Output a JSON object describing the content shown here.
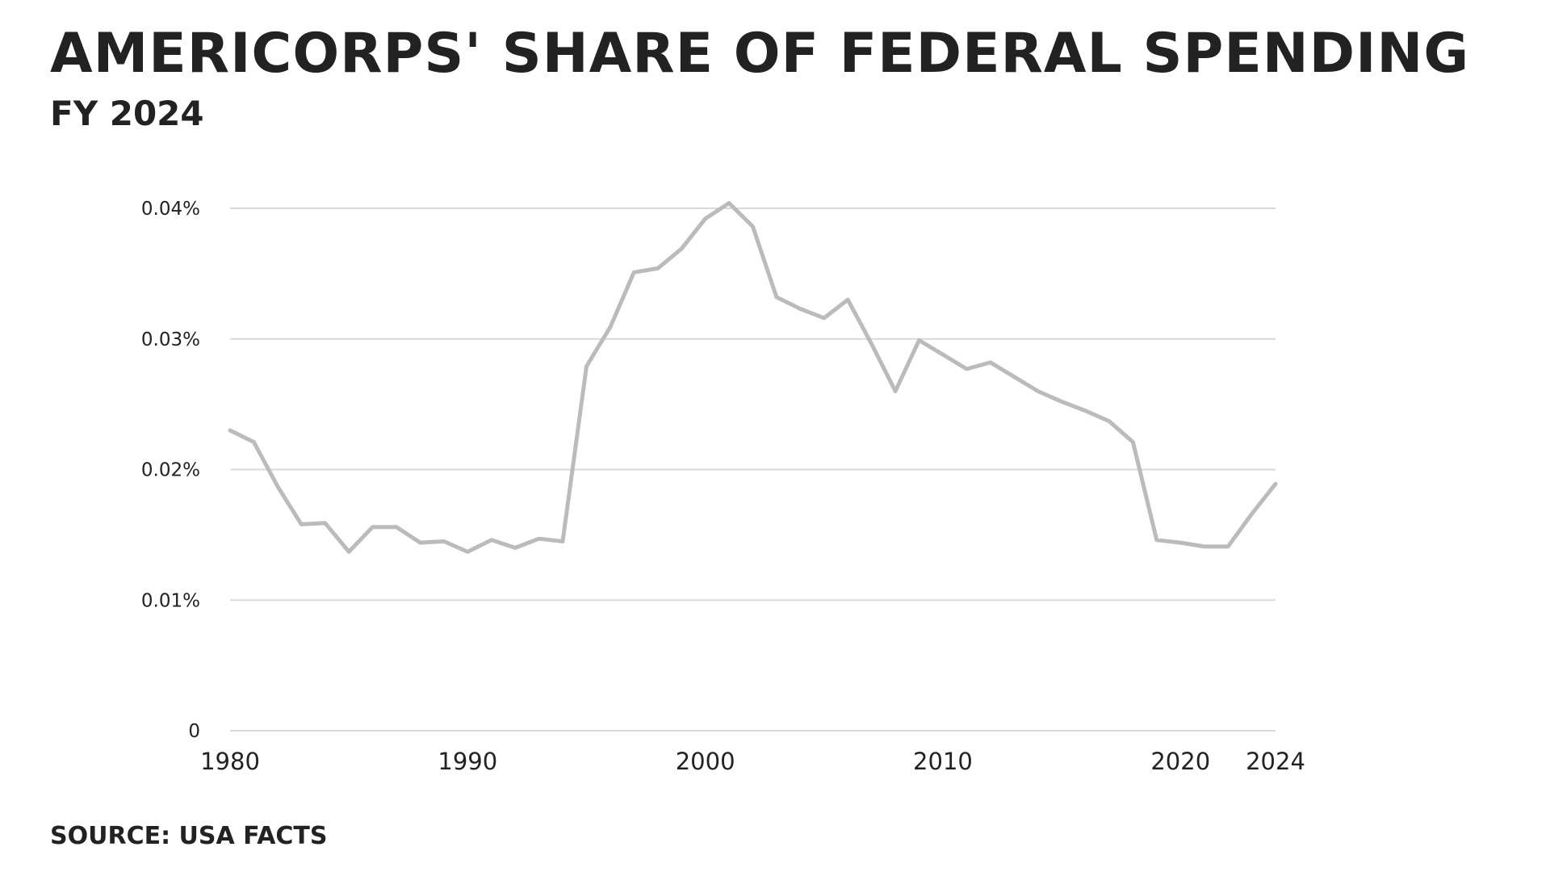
{
  "chart_data": {
    "type": "line",
    "title": "AmeriCorps' share of federal spending",
    "subtitle": "FY 2024",
    "source": "Source: USA Facts",
    "xlabel": "",
    "ylabel": "",
    "xlim": [
      1980,
      2024
    ],
    "ylim": [
      0,
      0.04
    ],
    "grid": true,
    "x_ticks": [
      1980,
      1990,
      2000,
      2010,
      2020,
      2024
    ],
    "x_tick_labels": [
      "1980",
      "1990",
      "2000",
      "2010",
      "2020",
      "2024"
    ],
    "y_ticks": [
      0,
      0.01,
      0.02,
      0.03,
      0.04
    ],
    "y_tick_labels": [
      "0",
      "0.01%",
      "0.02%",
      "0.03%",
      "0.04%"
    ],
    "series": [
      {
        "name": "AmeriCorps share of federal spending (%)",
        "color": "#bbbbbb",
        "x": [
          1980,
          1981,
          1982,
          1983,
          1984,
          1985,
          1986,
          1987,
          1988,
          1989,
          1990,
          1991,
          1992,
          1993,
          1994,
          1995,
          1996,
          1997,
          1998,
          1999,
          2000,
          2001,
          2002,
          2003,
          2004,
          2005,
          2006,
          2007,
          2008,
          2009,
          2010,
          2011,
          2012,
          2013,
          2014,
          2015,
          2016,
          2017,
          2018,
          2019,
          2020,
          2021,
          2022,
          2023,
          2024
        ],
        "values": [
          0.023,
          0.0221,
          0.0187,
          0.0158,
          0.0159,
          0.0137,
          0.0156,
          0.0156,
          0.0144,
          0.0145,
          0.0137,
          0.0146,
          0.014,
          0.0147,
          0.0145,
          0.0279,
          0.0309,
          0.0351,
          0.0354,
          0.0369,
          0.0392,
          0.0404,
          0.0386,
          0.0332,
          0.0323,
          0.0316,
          0.033,
          0.0296,
          0.026,
          0.0299,
          0.0288,
          0.0277,
          0.0282,
          0.0271,
          0.026,
          0.0252,
          0.0245,
          0.0237,
          0.0221,
          0.0146,
          0.0144,
          0.0141,
          0.0141,
          0.0166,
          0.0189
        ]
      }
    ]
  }
}
